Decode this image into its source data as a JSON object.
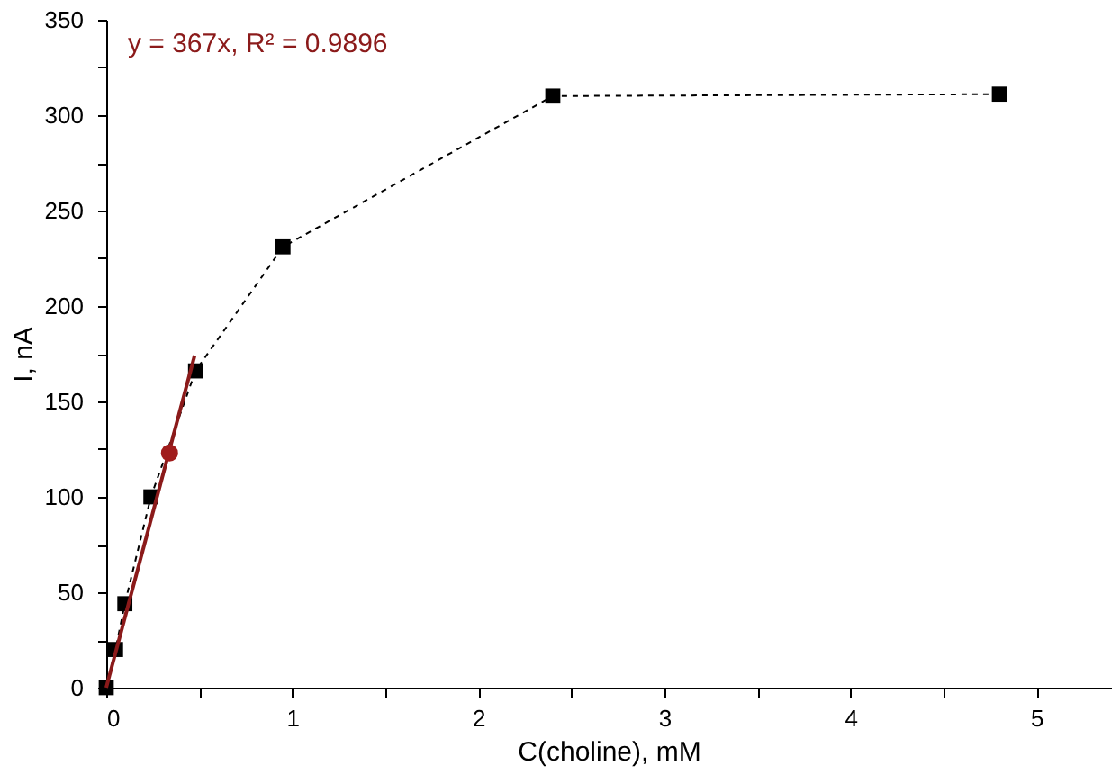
{
  "chart_data": {
    "type": "line",
    "xlabel": "C(choline), mM",
    "ylabel": "I, nA",
    "annotations": [
      "y = 367x, R² = 0.9896"
    ],
    "xlim": [
      0,
      5.4
    ],
    "ylim": [
      0,
      350
    ],
    "xticks": [
      0,
      {
        "value": 0.5,
        "label": null
      },
      1,
      {
        "value": 1.5,
        "label": null
      },
      2,
      {
        "value": 2.5,
        "label": null
      },
      3,
      {
        "value": 3.5,
        "label": null
      },
      4,
      {
        "value": 4.5,
        "label": null
      },
      5
    ],
    "yticks": [
      0,
      {
        "value": 25,
        "label": null
      },
      50,
      {
        "value": 75,
        "label": null
      },
      100,
      {
        "value": 125,
        "label": null
      },
      150,
      {
        "value": 175,
        "label": null
      },
      200,
      {
        "value": 225,
        "label": null
      },
      250,
      {
        "value": 275,
        "label": null
      },
      300,
      {
        "value": 325,
        "label": null
      },
      350
    ],
    "grid": false,
    "series": [
      {
        "type": "line",
        "color": "#000000",
        "marker": "square",
        "line_style": "dashed",
        "x": [
          0,
          0.05,
          0.1,
          0.24,
          0.48,
          0.95,
          2.4,
          4.8
        ],
        "values": [
          0,
          20,
          44,
          100,
          166,
          231,
          310,
          311
        ]
      },
      {
        "type": "line",
        "color": "#8b1a1a",
        "marker": "none",
        "line_style": "solid",
        "x": [
          0,
          0.475
        ],
        "values": [
          0,
          174
        ]
      },
      {
        "type": "scatter",
        "color": "#a01c1c",
        "marker": "circle",
        "x": [
          0.34
        ],
        "values": [
          123
        ]
      }
    ]
  }
}
